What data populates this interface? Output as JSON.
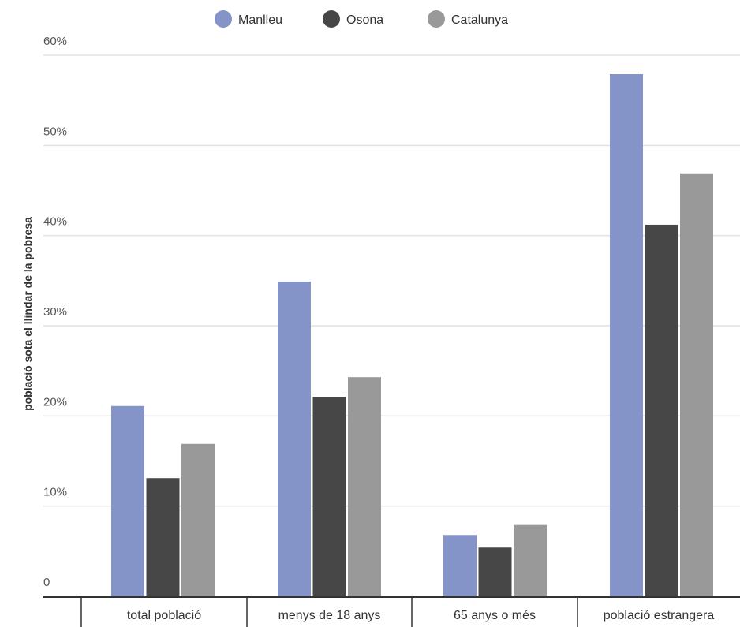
{
  "chart_data": {
    "type": "bar",
    "title": "",
    "xlabel": "",
    "ylabel": "població sota el llindar de la pobresa",
    "categories": [
      "total població",
      "menys de 18 anys",
      "65 anys o més",
      "població estrangera"
    ],
    "series": [
      {
        "name": "Manlleu",
        "color": "#8594c8",
        "values": [
          21.1,
          34.9,
          6.8,
          57.9
        ]
      },
      {
        "name": "Osona",
        "color": "#474747",
        "values": [
          13.1,
          22.1,
          5.4,
          41.2
        ]
      },
      {
        "name": "Catalunya",
        "color": "#999999",
        "values": [
          16.9,
          24.3,
          7.9,
          46.9
        ]
      }
    ],
    "ylim": [
      0,
      60
    ],
    "yticks": [
      {
        "value": 0,
        "label": "0"
      },
      {
        "value": 10,
        "label": "10%"
      },
      {
        "value": 20,
        "label": "20%"
      },
      {
        "value": 30,
        "label": "30%"
      },
      {
        "value": 40,
        "label": "40%"
      },
      {
        "value": 50,
        "label": "50%"
      },
      {
        "value": 60,
        "label": "60%"
      }
    ],
    "grid": true,
    "legend_position": "top"
  }
}
